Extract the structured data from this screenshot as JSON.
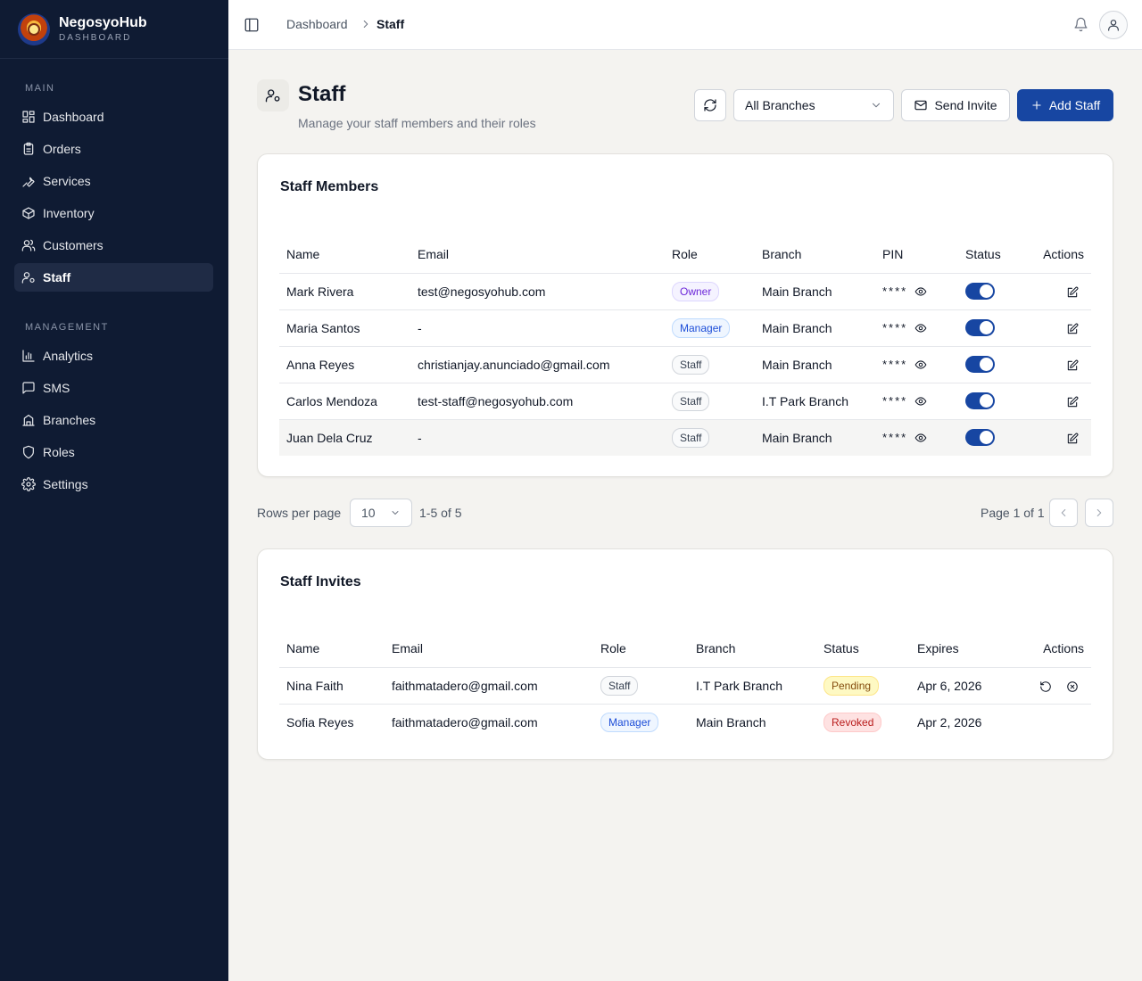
{
  "brand": {
    "name": "NegosyoHub",
    "subtitle": "DASHBOARD"
  },
  "sidebar": {
    "sections": [
      {
        "label": "MAIN",
        "items": [
          {
            "label": "Dashboard",
            "icon": "dashboard-icon"
          },
          {
            "label": "Orders",
            "icon": "clipboard-icon"
          },
          {
            "label": "Services",
            "icon": "wrench-icon"
          },
          {
            "label": "Inventory",
            "icon": "package-icon"
          },
          {
            "label": "Customers",
            "icon": "users-icon"
          },
          {
            "label": "Staff",
            "icon": "user-cog-icon",
            "active": true
          }
        ]
      },
      {
        "label": "MANAGEMENT",
        "items": [
          {
            "label": "Analytics",
            "icon": "bar-chart-icon"
          },
          {
            "label": "SMS",
            "icon": "message-icon"
          },
          {
            "label": "Branches",
            "icon": "building-icon"
          },
          {
            "label": "Roles",
            "icon": "shield-icon"
          },
          {
            "label": "Settings",
            "icon": "gear-icon"
          }
        ]
      }
    ]
  },
  "breadcrumb": {
    "parent": "Dashboard",
    "current": "Staff"
  },
  "header": {
    "title": "Staff",
    "subtitle": "Manage your staff members and their roles",
    "branch_select": "All Branches",
    "send_invite": "Send Invite",
    "add_staff": "Add Staff"
  },
  "members": {
    "title": "Staff Members",
    "columns": [
      "Name",
      "Email",
      "Role",
      "Branch",
      "PIN",
      "Status",
      "Actions"
    ],
    "rows": [
      {
        "name": "Mark Rivera",
        "email": "test@negosyohub.com",
        "role": "Owner",
        "branch": "Main Branch",
        "pin": "****",
        "active": true
      },
      {
        "name": "Maria Santos",
        "email": "-",
        "role": "Manager",
        "branch": "Main Branch",
        "pin": "****",
        "active": true
      },
      {
        "name": "Anna Reyes",
        "email": "christianjay.anunciado@gmail.com",
        "role": "Staff",
        "branch": "Main Branch",
        "pin": "****",
        "active": true
      },
      {
        "name": "Carlos Mendoza",
        "email": "test-staff@negosyohub.com",
        "role": "Staff",
        "branch": "I.T Park Branch",
        "pin": "****",
        "active": true
      },
      {
        "name": "Juan Dela Cruz",
        "email": "-",
        "role": "Staff",
        "branch": "Main Branch",
        "pin": "****",
        "active": true
      }
    ]
  },
  "pagination": {
    "rows_per_page_label": "Rows per page",
    "rows_per_page": "10",
    "range": "1-5 of 5",
    "page_info": "Page 1 of 1"
  },
  "invites": {
    "title": "Staff Invites",
    "columns": [
      "Name",
      "Email",
      "Role",
      "Branch",
      "Status",
      "Expires",
      "Actions"
    ],
    "rows": [
      {
        "name": "Nina Faith",
        "email": "faithmatadero@gmail.com",
        "role": "Staff",
        "branch": "I.T Park Branch",
        "status": "Pending",
        "expires": "Apr 6, 2026"
      },
      {
        "name": "Sofia Reyes",
        "email": "faithmatadero@gmail.com",
        "role": "Manager",
        "branch": "Main Branch",
        "status": "Revoked",
        "expires": "Apr 2, 2026"
      }
    ]
  },
  "colors": {
    "sidebar_bg": "#0f1b33",
    "primary": "#1746a2",
    "page_bg": "#f4f3f0"
  }
}
